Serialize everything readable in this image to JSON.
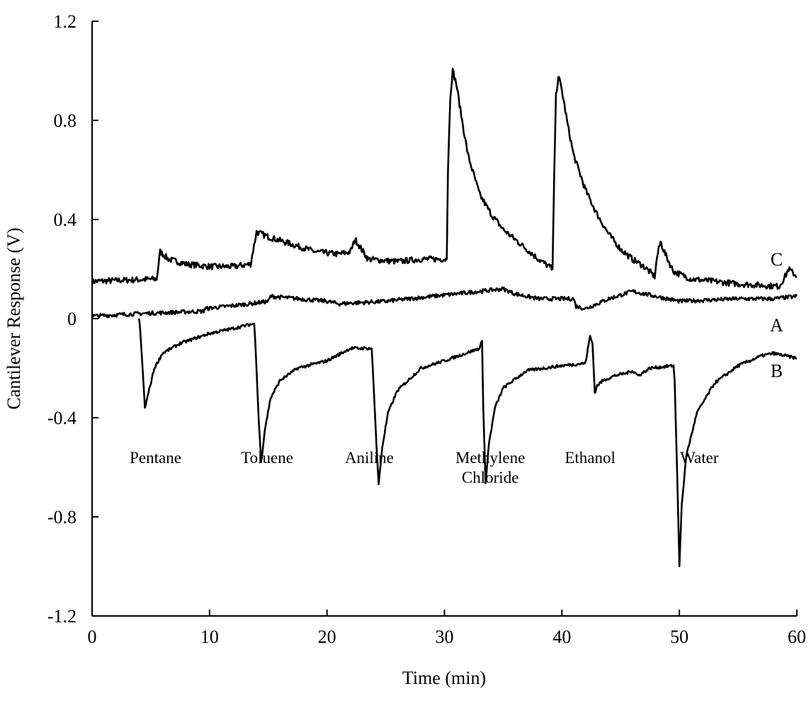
{
  "chart_data": {
    "type": "line",
    "title": "",
    "xlabel": "Time (min)",
    "ylabel": "Cantilever Response (V)",
    "xlim": [
      0,
      60
    ],
    "ylim": [
      -1.2,
      1.2
    ],
    "x_ticks": [
      0,
      10,
      20,
      30,
      40,
      50,
      60
    ],
    "x_tick_labels": [
      "0",
      "10",
      "20",
      "30",
      "40",
      "50",
      "60"
    ],
    "y_ticks": [
      1.2,
      0.8,
      0.4,
      0,
      -0.4,
      -0.8,
      -1.2
    ],
    "y_tick_labels": [
      "1.2",
      "0.8",
      "0.4",
      "0",
      "-0.4",
      "-0.8",
      "-1.2"
    ],
    "grid": false,
    "series": [
      {
        "name": "C",
        "noise": 0.012,
        "points": [
          [
            0,
            0.15
          ],
          [
            5.5,
            0.16
          ],
          [
            5.8,
            0.27
          ],
          [
            6.5,
            0.24
          ],
          [
            8,
            0.22
          ],
          [
            10,
            0.21
          ],
          [
            12,
            0.21
          ],
          [
            13.5,
            0.22
          ],
          [
            14,
            0.35
          ],
          [
            15,
            0.33
          ],
          [
            17,
            0.3
          ],
          [
            19,
            0.27
          ],
          [
            21,
            0.26
          ],
          [
            22,
            0.27
          ],
          [
            22.4,
            0.32
          ],
          [
            22.8,
            0.29
          ],
          [
            23.5,
            0.24
          ],
          [
            26,
            0.23
          ],
          [
            28,
            0.24
          ],
          [
            30.2,
            0.24
          ],
          [
            30.3,
            0.6
          ],
          [
            30.5,
            0.9
          ],
          [
            30.7,
            1.0
          ],
          [
            31,
            0.95
          ],
          [
            31.5,
            0.8
          ],
          [
            32,
            0.66
          ],
          [
            33,
            0.5
          ],
          [
            34,
            0.42
          ],
          [
            35,
            0.36
          ],
          [
            36.5,
            0.3
          ],
          [
            38,
            0.24
          ],
          [
            39.2,
            0.2
          ],
          [
            39.35,
            0.6
          ],
          [
            39.5,
            0.9
          ],
          [
            39.7,
            0.98
          ],
          [
            40,
            0.92
          ],
          [
            40.5,
            0.78
          ],
          [
            41,
            0.66
          ],
          [
            42,
            0.52
          ],
          [
            43,
            0.42
          ],
          [
            44,
            0.34
          ],
          [
            45,
            0.28
          ],
          [
            46,
            0.24
          ],
          [
            47,
            0.21
          ],
          [
            47.9,
            0.17
          ],
          [
            48.1,
            0.25
          ],
          [
            48.4,
            0.31
          ],
          [
            48.8,
            0.26
          ],
          [
            49.5,
            0.19
          ],
          [
            51,
            0.16
          ],
          [
            53,
            0.15
          ],
          [
            55,
            0.14
          ],
          [
            58.5,
            0.13
          ],
          [
            59,
            0.17
          ],
          [
            59.3,
            0.2
          ],
          [
            60,
            0.17
          ]
        ]
      },
      {
        "name": "A",
        "noise": 0.008,
        "points": [
          [
            0,
            0.01
          ],
          [
            4,
            0.02
          ],
          [
            9.5,
            0.03
          ],
          [
            9.6,
            0.04
          ],
          [
            13.5,
            0.06
          ],
          [
            15,
            0.07
          ],
          [
            15.2,
            0.09
          ],
          [
            20,
            0.07
          ],
          [
            21,
            0.06
          ],
          [
            25,
            0.07
          ],
          [
            29,
            0.09
          ],
          [
            33,
            0.11
          ],
          [
            35,
            0.12
          ],
          [
            36,
            0.1
          ],
          [
            38,
            0.08
          ],
          [
            41,
            0.08
          ],
          [
            41.2,
            0.05
          ],
          [
            42,
            0.04
          ],
          [
            44,
            0.08
          ],
          [
            46,
            0.11
          ],
          [
            47,
            0.1
          ],
          [
            48,
            0.09
          ],
          [
            50,
            0.07
          ],
          [
            55,
            0.08
          ],
          [
            58,
            0.08
          ],
          [
            60,
            0.09
          ]
        ]
      },
      {
        "name": "B",
        "noise": 0.006,
        "points": [
          [
            4,
            0.0
          ],
          [
            4.1,
            -0.05
          ],
          [
            4.3,
            -0.2
          ],
          [
            4.5,
            -0.36
          ],
          [
            4.8,
            -0.3
          ],
          [
            5.3,
            -0.2
          ],
          [
            6,
            -0.14
          ],
          [
            7.5,
            -0.1
          ],
          [
            10,
            -0.06
          ],
          [
            12,
            -0.04
          ],
          [
            13.8,
            -0.02
          ],
          [
            13.9,
            -0.1
          ],
          [
            14.2,
            -0.42
          ],
          [
            14.4,
            -0.58
          ],
          [
            14.7,
            -0.45
          ],
          [
            15.2,
            -0.32
          ],
          [
            16,
            -0.25
          ],
          [
            17.5,
            -0.2
          ],
          [
            20,
            -0.17
          ],
          [
            22,
            -0.12
          ],
          [
            23.8,
            -0.12
          ],
          [
            23.9,
            -0.2
          ],
          [
            24.2,
            -0.5
          ],
          [
            24.4,
            -0.67
          ],
          [
            24.7,
            -0.52
          ],
          [
            25.2,
            -0.38
          ],
          [
            26,
            -0.29
          ],
          [
            28,
            -0.2
          ],
          [
            30,
            -0.17
          ],
          [
            33,
            -0.12
          ],
          [
            33.2,
            -0.09
          ],
          [
            33.3,
            -0.35
          ],
          [
            33.5,
            -0.66
          ],
          [
            33.8,
            -0.5
          ],
          [
            34.3,
            -0.36
          ],
          [
            35,
            -0.28
          ],
          [
            37,
            -0.21
          ],
          [
            40,
            -0.19
          ],
          [
            42,
            -0.18
          ],
          [
            42.4,
            -0.07
          ],
          [
            42.6,
            -0.1
          ],
          [
            42.8,
            -0.3
          ],
          [
            43,
            -0.27
          ],
          [
            43.5,
            -0.25
          ],
          [
            44.5,
            -0.23
          ],
          [
            45.5,
            -0.22
          ],
          [
            46,
            -0.21
          ],
          [
            46.5,
            -0.23
          ],
          [
            47.5,
            -0.2
          ],
          [
            49.5,
            -0.19
          ],
          [
            49.6,
            -0.25
          ],
          [
            49.8,
            -0.6
          ],
          [
            50,
            -1.0
          ],
          [
            50.2,
            -0.75
          ],
          [
            50.6,
            -0.55
          ],
          [
            51.5,
            -0.38
          ],
          [
            53,
            -0.26
          ],
          [
            55,
            -0.19
          ],
          [
            57,
            -0.15
          ],
          [
            58,
            -0.14
          ],
          [
            60,
            -0.16
          ]
        ]
      }
    ],
    "series_labels": [
      {
        "text": "C",
        "x": 57.2,
        "y": 0.24
      },
      {
        "text": "A",
        "x": 57.2,
        "y": -0.025
      },
      {
        "text": "B",
        "x": 57.2,
        "y": -0.21
      }
    ],
    "annotations": [
      {
        "lines": [
          "Pentane"
        ],
        "x": 5.4,
        "y": -0.56
      },
      {
        "lines": [
          "Toluene"
        ],
        "x": 14.9,
        "y": -0.56
      },
      {
        "lines": [
          "Aniline"
        ],
        "x": 23.6,
        "y": -0.56
      },
      {
        "lines": [
          "Methylene",
          "Chloride"
        ],
        "x": 33.9,
        "y": -0.56
      },
      {
        "lines": [
          "Ethanol"
        ],
        "x": 42.4,
        "y": -0.56
      },
      {
        "lines": [
          "Water"
        ],
        "x": 51.7,
        "y": -0.56
      }
    ]
  }
}
